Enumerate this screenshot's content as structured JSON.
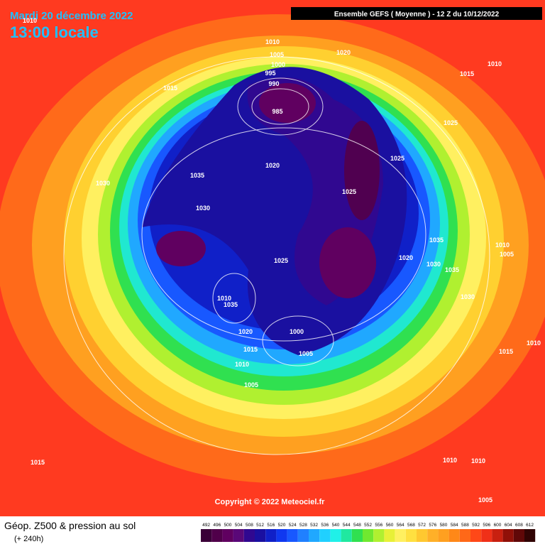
{
  "header": {
    "date": "Mardi 20 décembre 2022",
    "time": "13:00 locale",
    "run": "Ensemble GEFS  ( Moyenne )  -  12 Z du 10/12/2022"
  },
  "isobar_labels": [
    "1010",
    "1005",
    "1000",
    "995",
    "990",
    "985",
    "1020",
    "1015",
    "1010",
    "1015",
    "1025",
    "1025",
    "1025",
    "1020",
    "1035",
    "1030",
    "1030",
    "1035",
    "1010",
    "1005",
    "1020",
    "1030",
    "1035",
    "1025",
    "1030",
    "1010",
    "1035",
    "1020",
    "1000",
    "1015",
    "1005",
    "1015",
    "1010",
    "1010",
    "1005",
    "1015",
    "1010",
    "1010",
    "1005",
    "1010"
  ],
  "copyright": "Copyright © 2022 Meteociel.fr",
  "footer": {
    "title": "Géop. Z500 & pression au sol",
    "lead": "(+ 240h)"
  },
  "scale": {
    "values": [
      492,
      496,
      500,
      504,
      508,
      512,
      516,
      520,
      524,
      528,
      532,
      536,
      540,
      544,
      548,
      552,
      556,
      560,
      564,
      568,
      572,
      576,
      580,
      584,
      588,
      592,
      596,
      600,
      604,
      608,
      612
    ],
    "colors": [
      "#3a0038",
      "#50004a",
      "#600060",
      "#5a0878",
      "#300890",
      "#1a10a0",
      "#1020c8",
      "#1038f0",
      "#1858ff",
      "#2080ff",
      "#20a8ff",
      "#20d0ff",
      "#20f0e8",
      "#20e8a0",
      "#30e050",
      "#70e830",
      "#b0f030",
      "#e8f038",
      "#fff060",
      "#ffe040",
      "#ffc830",
      "#ffb028",
      "#ffa020",
      "#ff8818",
      "#ff6818",
      "#ff4818",
      "#f03018",
      "#c82010",
      "#901008",
      "#600808",
      "#300404"
    ]
  }
}
